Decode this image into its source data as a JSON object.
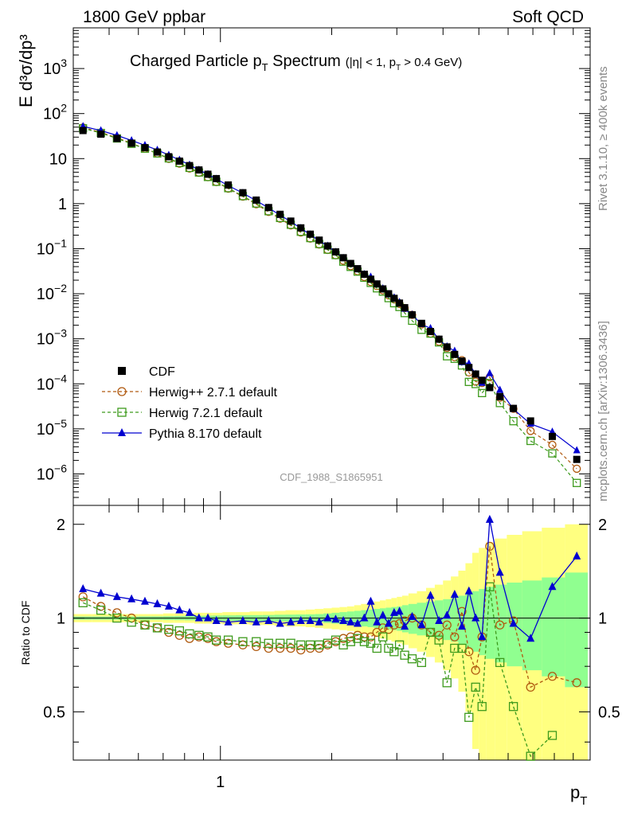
{
  "header": {
    "left": "1800 GeV ppbar",
    "right": "Soft QCD"
  },
  "side_labels": {
    "rivet": "Rivet 3.1.10, ≥ 400k events",
    "mcplots": "mcplots.cern.ch [arXiv:1306.3436]"
  },
  "colors": {
    "data": "#000000",
    "herwigpp": "#b05a10",
    "herwig7": "#3d9a1c",
    "pythia": "#0000d0",
    "band_yellow": "#ffff80",
    "band_green": "#90ff90"
  },
  "chart_data": [
    {
      "type": "scatter",
      "panel": "main",
      "title": "Charged Particle p",
      "title_sub": "T",
      "title_tail": " Spectrum",
      "title_cut": "(|η| < 1, p",
      "title_cut_sub": "T",
      "title_cut_tail": " > 0.4 GeV)",
      "ylabel": "E d³σ/dp³",
      "analysis_label": "CDF_1988_S1865951",
      "yscale": "log",
      "xscale": "log",
      "xlim": [
        0.4,
        10.0
      ],
      "ylim": [
        2e-07,
        8000
      ],
      "yticks": [
        {
          "label": "10⁶⁻",
          "base": "10",
          "exp": "−6",
          "value": 1e-06
        },
        {
          "base": "10",
          "exp": "−5",
          "value": 1e-05
        },
        {
          "base": "10",
          "exp": "−4",
          "value": 0.0001
        },
        {
          "base": "10",
          "exp": "−3",
          "value": 0.001
        },
        {
          "base": "10",
          "exp": "−2",
          "value": 0.01
        },
        {
          "base": "10",
          "exp": "−1",
          "value": 0.1
        },
        {
          "base": "1",
          "exp": "",
          "value": 1
        },
        {
          "base": "10",
          "exp": "",
          "value": 10
        },
        {
          "base": "10",
          "exp": "2",
          "value": 100
        },
        {
          "base": "10",
          "exp": "3",
          "value": 1000
        }
      ],
      "legend": [
        {
          "name": "CDF",
          "marker": "square-filled"
        },
        {
          "name": "Herwig++ 2.7.1 default",
          "marker": "circle-open",
          "line": "dashed"
        },
        {
          "name": "Herwig 7.2.1 default",
          "marker": "square-open",
          "line": "dashed"
        },
        {
          "name": "Pythia 8.170 default",
          "marker": "triangle-filled",
          "line": "solid"
        }
      ],
      "x": [
        0.425,
        0.475,
        0.525,
        0.575,
        0.625,
        0.675,
        0.725,
        0.775,
        0.825,
        0.875,
        0.925,
        0.975,
        1.05,
        1.15,
        1.25,
        1.35,
        1.45,
        1.55,
        1.65,
        1.75,
        1.85,
        1.95,
        2.05,
        2.15,
        2.25,
        2.35,
        2.45,
        2.55,
        2.65,
        2.75,
        2.85,
        2.95,
        3.05,
        3.15,
        3.3,
        3.5,
        3.7,
        3.9,
        4.1,
        4.3,
        4.5,
        4.7,
        4.9,
        5.1,
        5.35,
        5.7,
        6.2,
        6.9,
        7.9,
        9.2
      ],
      "series": [
        {
          "name": "CDF",
          "values": [
            42,
            35,
            28,
            22,
            17.5,
            14,
            11,
            8.8,
            7,
            5.6,
            4.5,
            3.6,
            2.6,
            1.75,
            1.2,
            0.82,
            0.58,
            0.41,
            0.29,
            0.21,
            0.155,
            0.115,
            0.085,
            0.063,
            0.047,
            0.036,
            0.027,
            0.021,
            0.0165,
            0.0128,
            0.01,
            0.0079,
            0.0062,
            0.0049,
            0.0034,
            0.0022,
            0.00145,
            0.00098,
            0.00066,
            0.00045,
            0.00032,
            0.00023,
            0.000165,
            0.00012,
            8.25e-05,
            5.2e-05,
            2.85e-05,
            1.5e-05,
            6.8e-06,
            2.1e-06
          ]
        }
      ]
    },
    {
      "type": "line",
      "panel": "ratio",
      "ylabel": "Ratio to CDF",
      "xlabel": "p",
      "xlabel_sub": "T",
      "xscale": "log",
      "xlim": [
        0.4,
        10.0
      ],
      "ylim": [
        0.35,
        2.3
      ],
      "yticks": [
        0.5,
        1,
        2
      ],
      "xticks_labeled": [
        1
      ],
      "x": [
        0.425,
        0.475,
        0.525,
        0.575,
        0.625,
        0.675,
        0.725,
        0.775,
        0.825,
        0.875,
        0.925,
        0.975,
        1.05,
        1.15,
        1.25,
        1.35,
        1.45,
        1.55,
        1.65,
        1.75,
        1.85,
        1.95,
        2.05,
        2.15,
        2.25,
        2.35,
        2.45,
        2.55,
        2.65,
        2.75,
        2.85,
        2.95,
        3.05,
        3.15,
        3.3,
        3.5,
        3.7,
        3.9,
        4.1,
        4.3,
        4.5,
        4.7,
        4.9,
        5.1,
        5.35,
        5.7,
        6.2,
        6.9,
        7.9,
        9.2
      ],
      "bands": [
        {
          "name": "CDF stat",
          "color": "#90ff90",
          "values": [
            0.012,
            0.012,
            0.012,
            0.012,
            0.013,
            0.013,
            0.014,
            0.015,
            0.016,
            0.017,
            0.018,
            0.019,
            0.02,
            0.021,
            0.022,
            0.023,
            0.025,
            0.026,
            0.027,
            0.028,
            0.03,
            0.035,
            0.04,
            0.045,
            0.05,
            0.055,
            0.06,
            0.065,
            0.07,
            0.075,
            0.08,
            0.085,
            0.09,
            0.1,
            0.11,
            0.12,
            0.13,
            0.14,
            0.15,
            0.16,
            0.18,
            0.2,
            0.22,
            0.24,
            0.26,
            0.28,
            0.3,
            0.32,
            0.35,
            0.4
          ]
        },
        {
          "name": "CDF total",
          "color": "#ffff80",
          "values": [
            0.03,
            0.03,
            0.03,
            0.03,
            0.03,
            0.03,
            0.035,
            0.035,
            0.035,
            0.04,
            0.04,
            0.04,
            0.045,
            0.045,
            0.05,
            0.05,
            0.055,
            0.06,
            0.06,
            0.065,
            0.07,
            0.075,
            0.08,
            0.085,
            0.09,
            0.1,
            0.11,
            0.12,
            0.13,
            0.14,
            0.15,
            0.16,
            0.17,
            0.18,
            0.2,
            0.22,
            0.25,
            0.28,
            0.32,
            0.36,
            0.42,
            0.5,
            0.62,
            0.68,
            0.75,
            0.8,
            0.85,
            0.9,
            0.95,
            1.0
          ]
        }
      ],
      "series": [
        {
          "name": "Herwig++ 2.7.1 default",
          "values": [
            1.17,
            1.09,
            1.04,
            1.0,
            0.95,
            0.93,
            0.9,
            0.88,
            0.86,
            0.87,
            0.86,
            0.84,
            0.83,
            0.82,
            0.81,
            0.8,
            0.8,
            0.8,
            0.79,
            0.8,
            0.8,
            0.82,
            0.84,
            0.86,
            0.87,
            0.88,
            0.87,
            0.87,
            0.9,
            0.93,
            0.92,
            0.95,
            0.96,
            0.98,
            1.0,
            0.95,
            0.9,
            0.88,
            0.95,
            0.87,
            1.05,
            0.78,
            0.68,
            0.87,
            1.7,
            0.95,
            0.98,
            0.6,
            0.65,
            0.62
          ]
        },
        {
          "name": "Herwig 7.2.1 default",
          "values": [
            1.12,
            1.06,
            1.0,
            0.97,
            0.95,
            0.93,
            0.92,
            0.91,
            0.89,
            0.88,
            0.87,
            0.85,
            0.85,
            0.84,
            0.84,
            0.83,
            0.83,
            0.83,
            0.82,
            0.82,
            0.82,
            0.83,
            0.85,
            0.82,
            0.84,
            0.86,
            0.84,
            0.83,
            0.8,
            0.87,
            0.8,
            0.78,
            0.82,
            0.76,
            0.74,
            0.72,
            0.9,
            0.85,
            0.62,
            0.8,
            0.8,
            0.48,
            0.6,
            0.52,
            1.26,
            0.72,
            0.52,
            0.36,
            0.42,
            0.3
          ]
        },
        {
          "name": "Pythia 8.170 default",
          "values": [
            1.24,
            1.2,
            1.17,
            1.15,
            1.13,
            1.11,
            1.09,
            1.06,
            1.04,
            1.0,
            1.0,
            0.98,
            0.97,
            0.98,
            0.97,
            0.98,
            0.96,
            0.97,
            0.98,
            0.98,
            0.97,
            1.0,
            0.99,
            0.98,
            0.97,
            0.96,
            1.0,
            1.13,
            0.97,
            1.02,
            0.96,
            1.04,
            1.05,
            0.94,
            1.01,
            0.95,
            1.18,
            0.98,
            1.02,
            1.19,
            0.94,
            1.22,
            1.0,
            0.87,
            2.07,
            1.4,
            0.96,
            0.86,
            1.26,
            1.58
          ]
        }
      ]
    }
  ]
}
